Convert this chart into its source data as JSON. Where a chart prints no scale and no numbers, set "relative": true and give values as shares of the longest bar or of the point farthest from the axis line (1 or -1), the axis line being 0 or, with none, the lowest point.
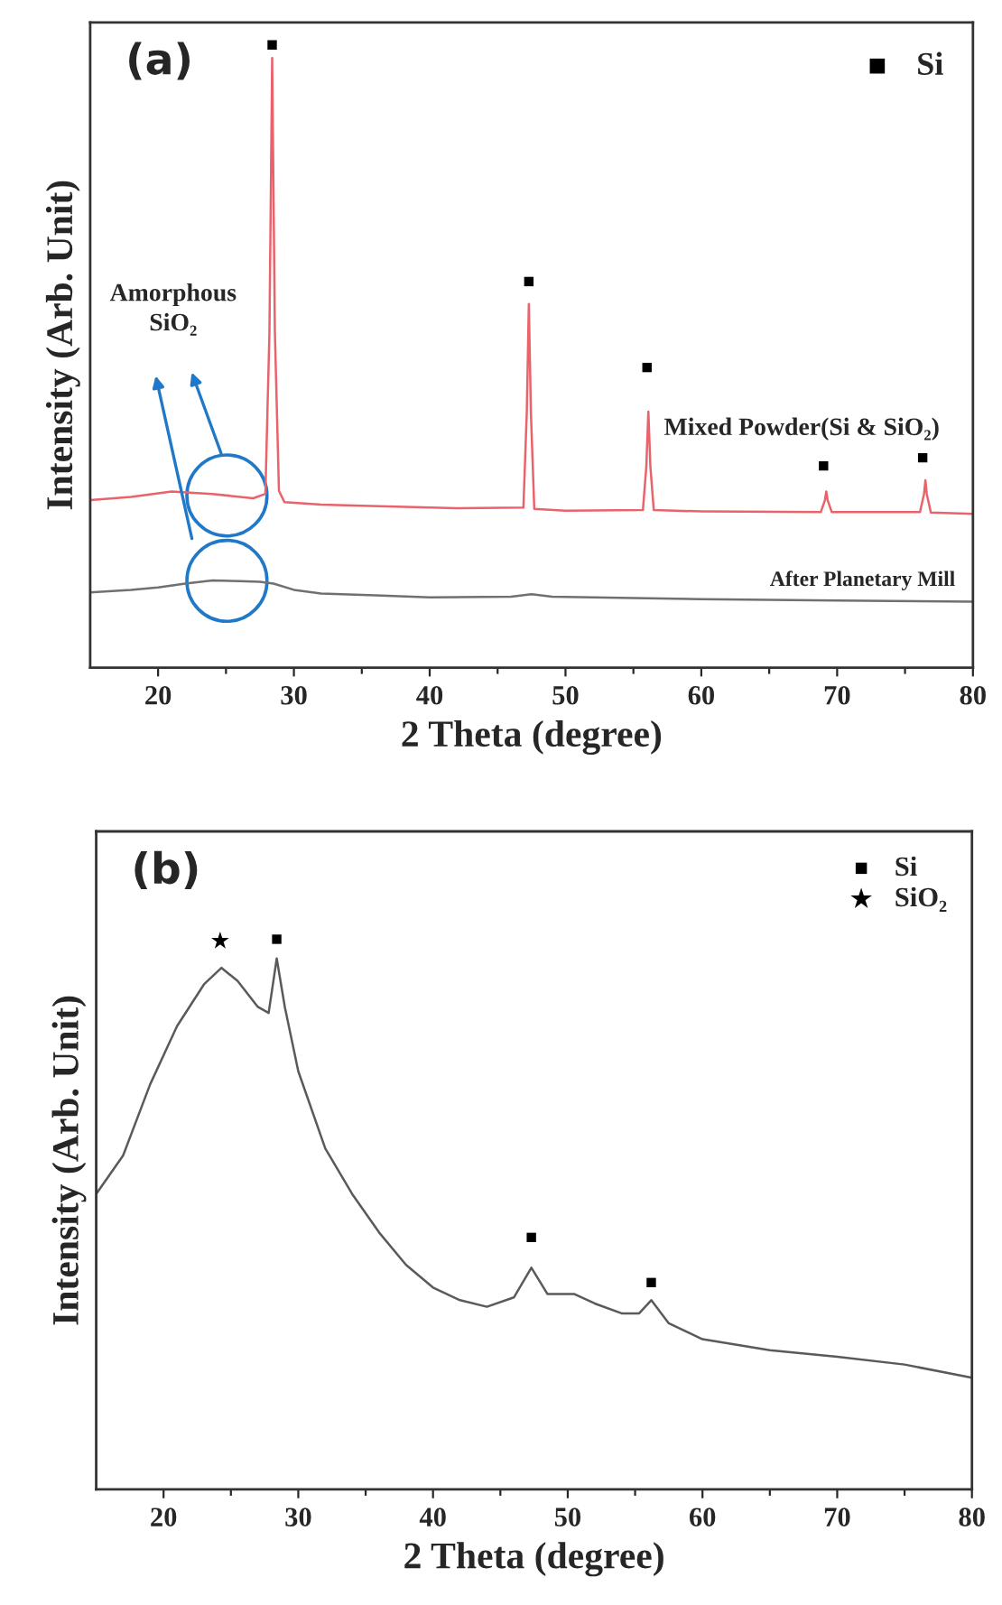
{
  "chart_data": [
    {
      "type": "line",
      "relative": true,
      "xlabel": "2 Theta (degree)",
      "ylabel": "Intensity (Arb. Unit)",
      "xlim": [
        15,
        80
      ],
      "xticks": [
        20,
        {
          "value": 25,
          "label": null
        },
        30,
        {
          "value": 35,
          "label": null
        },
        40,
        {
          "value": 45,
          "label": null
        },
        50,
        {
          "value": 55,
          "label": null
        },
        60,
        {
          "value": 65,
          "label": null
        },
        70,
        {
          "value": 75,
          "label": null
        },
        80
      ],
      "tick_labels": "x",
      "legend": "top right",
      "series": [
        {
          "color": "#e8636a",
          "x": [
            15,
            18,
            21,
            24,
            27,
            27.9,
            28.2,
            28.4,
            28.6,
            28.9,
            29.3,
            32,
            35,
            42,
            46.9,
            47.15,
            47.3,
            47.45,
            47.7,
            50,
            55.7,
            55.95,
            56.1,
            56.25,
            56.5,
            60,
            68.8,
            69.1,
            69.2,
            69.3,
            69.6,
            76.1,
            76.4,
            76.5,
            76.6,
            76.9,
            80
          ],
          "values": [
            0.269,
            0.274,
            0.283,
            0.279,
            0.272,
            0.279,
            0.539,
            0.979,
            0.539,
            0.284,
            0.266,
            0.262,
            0.26,
            0.256,
            0.257,
            0.411,
            0.584,
            0.411,
            0.255,
            0.252,
            0.253,
            0.323,
            0.411,
            0.323,
            0.253,
            0.251,
            0.25,
            0.269,
            0.283,
            0.269,
            0.25,
            0.25,
            0.279,
            0.301,
            0.279,
            0.249,
            0.247
          ]
        },
        {
          "color": "#707070",
          "x": [
            15,
            18,
            20,
            22,
            24,
            26,
            27.5,
            28.5,
            30,
            32,
            36,
            40,
            46,
            47.5,
            49,
            55,
            60,
            70,
            80
          ],
          "values": [
            0.121,
            0.125,
            0.129,
            0.135,
            0.14,
            0.139,
            0.138,
            0.135,
            0.125,
            0.119,
            0.116,
            0.113,
            0.114,
            0.118,
            0.114,
            0.112,
            0.11,
            0.108,
            0.106
          ]
        },
        {
          "type": "scatter",
          "name": "Si",
          "marker": "square",
          "color": "#000000",
          "x": [
            28.4,
            47.3,
            56.0,
            69.0,
            76.3
          ],
          "values": [
            1.0,
            0.62,
            0.482,
            0.324,
            0.337
          ]
        }
      ],
      "annotations": [
        "(a)",
        "Amorphous\nSiO₂",
        "Mixed Powder(Si & SiO₂)",
        "After Planetary Mill"
      ]
    },
    {
      "type": "line",
      "relative": true,
      "xlabel": "2 Theta (degree)",
      "ylabel": "Intensity (Arb. Unit)",
      "xlim": [
        15,
        80
      ],
      "xticks": [
        20,
        {
          "value": 25,
          "label": null
        },
        30,
        {
          "value": 35,
          "label": null
        },
        40,
        {
          "value": 45,
          "label": null
        },
        50,
        {
          "value": 55,
          "label": null
        },
        60,
        {
          "value": 65,
          "label": null
        },
        70,
        {
          "value": 75,
          "label": null
        },
        80
      ],
      "tick_labels": "x",
      "legend": "top right",
      "series": [
        {
          "color": "#5a5a5a",
          "x": [
            15,
            17,
            19,
            21,
            23,
            24.3,
            25.5,
            27,
            27.8,
            28.4,
            29,
            30,
            32,
            34,
            36,
            38,
            40,
            42,
            44,
            46,
            47.3,
            48.5,
            50.5,
            52,
            54,
            55.3,
            56.2,
            57.5,
            60,
            65,
            70,
            75,
            80
          ],
          "values": [
            0.537,
            0.607,
            0.736,
            0.842,
            0.918,
            0.948,
            0.924,
            0.877,
            0.866,
            0.965,
            0.877,
            0.76,
            0.62,
            0.537,
            0.467,
            0.408,
            0.367,
            0.344,
            0.332,
            0.349,
            0.403,
            0.355,
            0.355,
            0.338,
            0.32,
            0.32,
            0.344,
            0.302,
            0.273,
            0.253,
            0.241,
            0.227,
            0.203
          ]
        },
        {
          "type": "scatter",
          "name": "Si",
          "marker": "square",
          "color": "#000000",
          "x": [
            28.4,
            47.3,
            56.2
          ],
          "values": [
            1.0,
            0.458,
            0.376
          ]
        },
        {
          "type": "scatter",
          "name": "SiO₂",
          "marker": "star",
          "color": "#000000",
          "x": [
            24.2
          ],
          "values": [
            0.997
          ]
        }
      ],
      "annotations": [
        "(b)"
      ]
    }
  ]
}
